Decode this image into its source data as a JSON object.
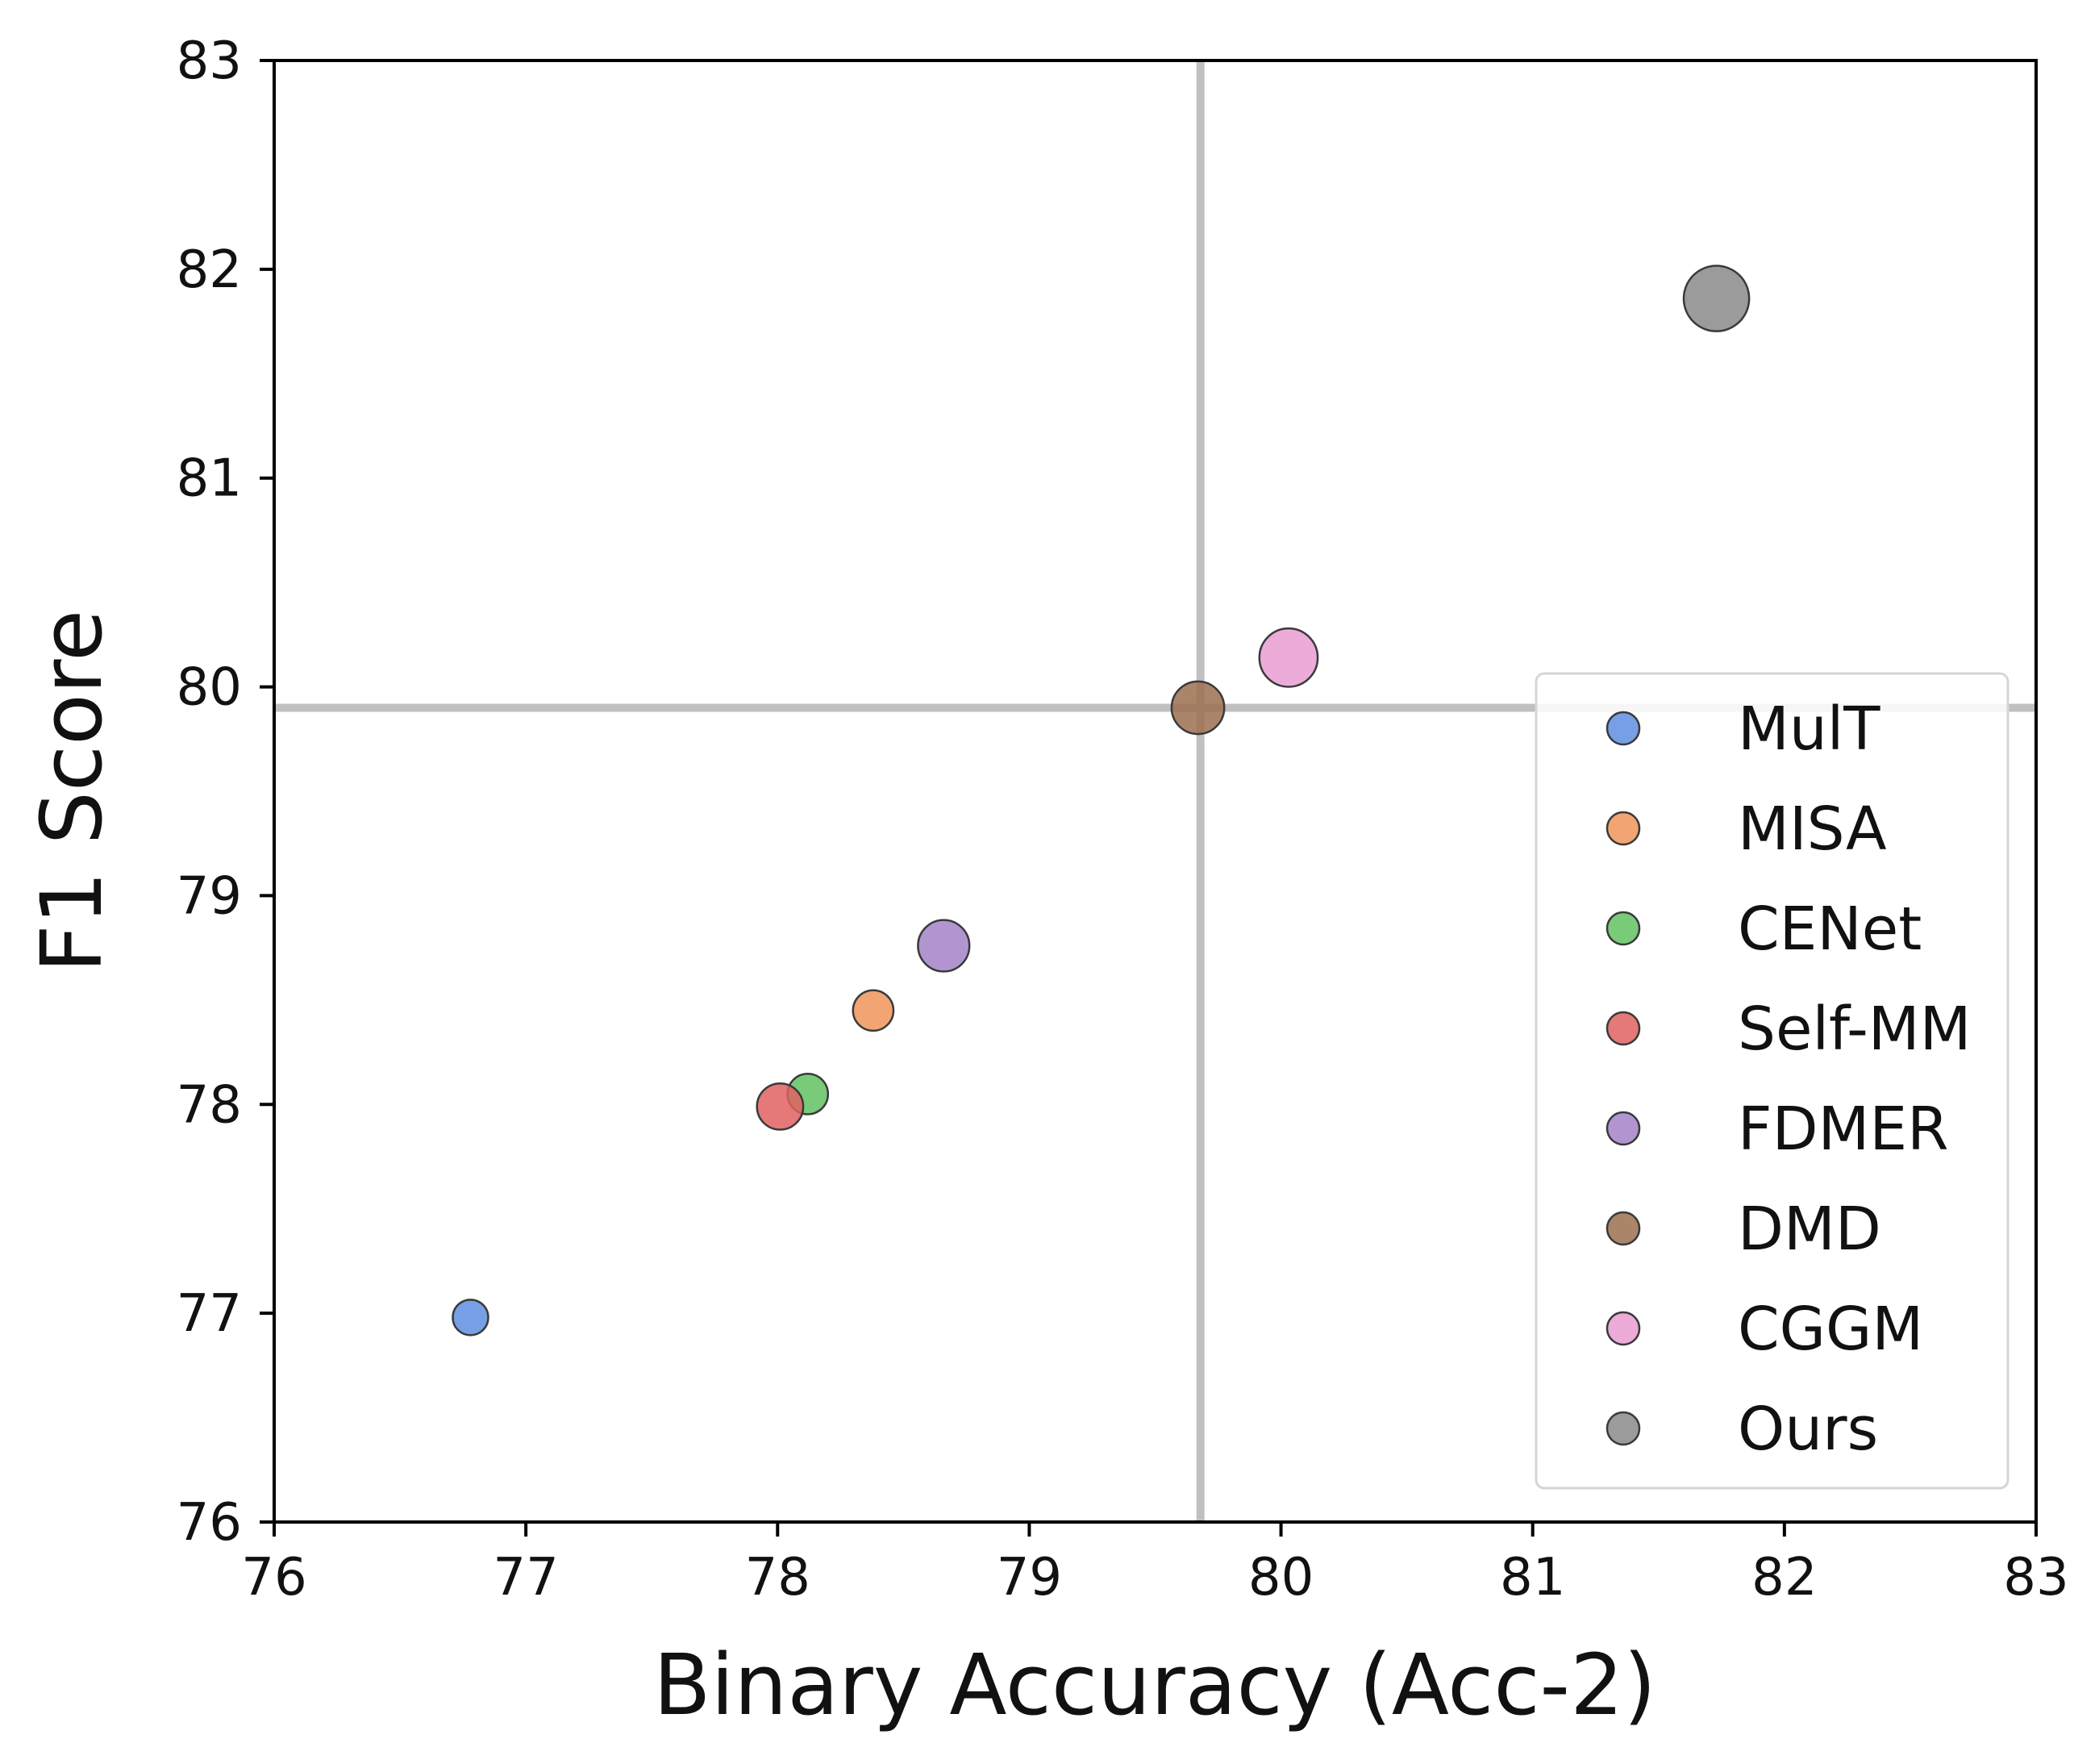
{
  "chart_data": {
    "type": "scatter",
    "title": "",
    "xlabel": "Binary Accuracy (Acc-2)",
    "ylabel": "F1 Score",
    "xlim": [
      76,
      83
    ],
    "ylim": [
      76,
      83
    ],
    "xticks": [
      "76",
      "77",
      "78",
      "79",
      "80",
      "81",
      "82",
      "83"
    ],
    "yticks": [
      "76",
      "77",
      "78",
      "79",
      "80",
      "81",
      "82",
      "83"
    ],
    "grid": false,
    "reference_lines": {
      "x": 79.68,
      "y": 79.9,
      "color": "#c0c0c0"
    },
    "legend_position": "lower-right",
    "series": [
      {
        "name": "MulT",
        "x": 76.78,
        "y": 76.98,
        "color": "#5f8ee0",
        "size": 1
      },
      {
        "name": "MISA",
        "x": 78.38,
        "y": 78.45,
        "color": "#f0955a",
        "size": 1.3
      },
      {
        "name": "CENet",
        "x": 78.12,
        "y": 78.05,
        "color": "#62c162",
        "size": 1.3
      },
      {
        "name": "Self-MM",
        "x": 78.01,
        "y": 77.99,
        "color": "#e06060",
        "size": 1.7
      },
      {
        "name": "FDMER",
        "x": 78.66,
        "y": 78.76,
        "color": "#a383c8",
        "size": 2.1
      },
      {
        "name": "DMD",
        "x": 79.67,
        "y": 79.9,
        "color": "#9c7050",
        "size": 2.2
      },
      {
        "name": "CGGM",
        "x": 80.03,
        "y": 80.14,
        "color": "#ea9cd2",
        "size": 2.7
      },
      {
        "name": "Ours",
        "x": 81.73,
        "y": 81.86,
        "color": "#8a8a8a",
        "size": 3.4
      }
    ]
  }
}
